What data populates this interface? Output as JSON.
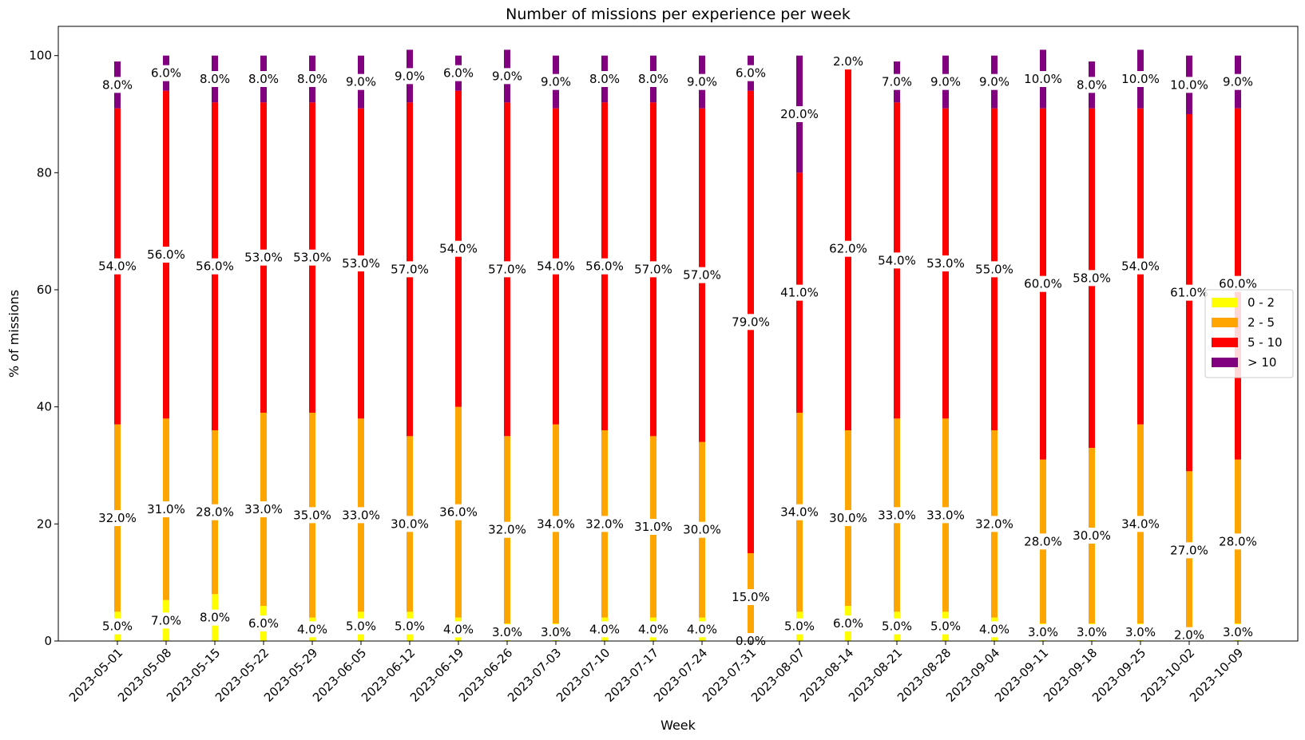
{
  "chart_data": {
    "type": "bar",
    "stacked": true,
    "title": "Number of missions per experience per week",
    "xlabel": "Week",
    "ylabel": "% of missions",
    "ylim": [
      0,
      105
    ],
    "yticks": [
      0,
      20,
      40,
      60,
      80,
      100
    ],
    "legend_position": "right",
    "grid": false,
    "categories": [
      "2023-05-01",
      "2023-05-08",
      "2023-05-15",
      "2023-05-22",
      "2023-05-29",
      "2023-06-05",
      "2023-06-12",
      "2023-06-19",
      "2023-06-26",
      "2023-07-03",
      "2023-07-10",
      "2023-07-17",
      "2023-07-24",
      "2023-07-31",
      "2023-08-07",
      "2023-08-14",
      "2023-08-21",
      "2023-08-28",
      "2023-09-04",
      "2023-09-11",
      "2023-09-18",
      "2023-09-25",
      "2023-10-02",
      "2023-10-09"
    ],
    "series": [
      {
        "name": "0 - 2",
        "color": "#ffff00",
        "values": [
          5,
          7,
          8,
          6,
          4,
          5,
          5,
          4,
          3,
          3,
          4,
          4,
          4,
          0,
          5,
          6,
          5,
          5,
          4,
          3,
          3,
          3,
          2,
          3
        ],
        "labels": [
          "5.0%",
          "7.0%",
          "8.0%",
          "6.0%",
          "4.0%",
          "5.0%",
          "5.0%",
          "4.0%",
          "3.0%",
          "3.0%",
          "4.0%",
          "4.0%",
          "4.0%",
          "0.0%",
          "5.0%",
          "6.0%",
          "5.0%",
          "5.0%",
          "4.0%",
          "3.0%",
          "3.0%",
          "3.0%",
          "2.0%",
          "3.0%"
        ]
      },
      {
        "name": "2 - 5",
        "color": "#ffa500",
        "values": [
          32,
          31,
          28,
          33,
          35,
          33,
          30,
          36,
          32,
          34,
          32,
          31,
          30,
          15,
          34,
          30,
          33,
          33,
          32,
          28,
          30,
          34,
          27,
          28
        ],
        "labels": [
          "32.0%",
          "31.0%",
          "28.0%",
          "33.0%",
          "35.0%",
          "33.0%",
          "30.0%",
          "36.0%",
          "32.0%",
          "34.0%",
          "32.0%",
          "31.0%",
          "30.0%",
          "15.0%",
          "34.0%",
          "30.0%",
          "33.0%",
          "33.0%",
          "32.0%",
          "28.0%",
          "30.0%",
          "34.0%",
          "27.0%",
          "28.0%"
        ]
      },
      {
        "name": "5 - 10",
        "color": "#ff0000",
        "values": [
          54,
          56,
          56,
          53,
          53,
          53,
          57,
          54,
          57,
          54,
          56,
          57,
          57,
          79,
          41,
          62,
          54,
          53,
          55,
          60,
          58,
          54,
          61,
          60
        ],
        "labels": [
          "54.0%",
          "56.0%",
          "56.0%",
          "53.0%",
          "53.0%",
          "53.0%",
          "57.0%",
          "54.0%",
          "57.0%",
          "54.0%",
          "56.0%",
          "57.0%",
          "57.0%",
          "79.0%",
          "41.0%",
          "62.0%",
          "54.0%",
          "53.0%",
          "55.0%",
          "60.0%",
          "58.0%",
          "54.0%",
          "61.0%",
          "60.0%"
        ]
      },
      {
        "name": "> 10",
        "color": "#800080",
        "values": [
          8,
          6,
          8,
          8,
          8,
          9,
          9,
          6,
          9,
          9,
          8,
          8,
          9,
          6,
          20,
          2,
          7,
          9,
          9,
          10,
          8,
          10,
          10,
          9
        ],
        "labels": [
          "8.0%",
          "6.0%",
          "8.0%",
          "8.0%",
          "8.0%",
          "9.0%",
          "9.0%",
          "6.0%",
          "9.0%",
          "9.0%",
          "8.0%",
          "8.0%",
          "9.0%",
          "6.0%",
          "20.0%",
          "2.0%",
          "7.0%",
          "9.0%",
          "9.0%",
          "10.0%",
          "8.0%",
          "10.0%",
          "10.0%",
          "9.0%"
        ]
      }
    ]
  }
}
